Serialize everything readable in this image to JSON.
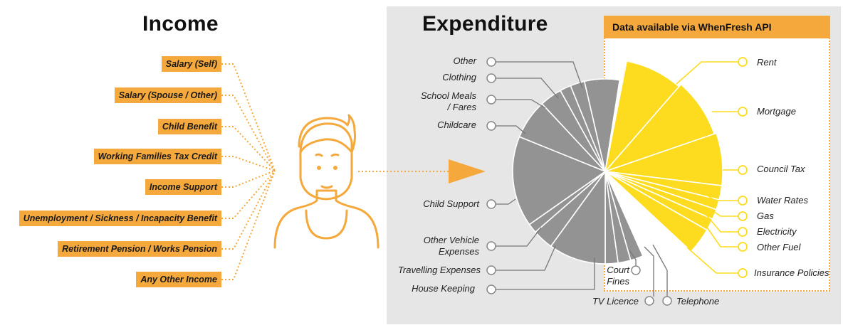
{
  "income": {
    "title": "Income",
    "items": [
      {
        "label": "Salary (Self)"
      },
      {
        "label": "Salary (Spouse / Other)"
      },
      {
        "label": "Child Benefit"
      },
      {
        "label": "Working Families Tax Credit"
      },
      {
        "label": "Income Support"
      },
      {
        "label": "Unemployment / Sickness / Incapacity Benefit"
      },
      {
        "label": "Retirement Pension / Works Pension"
      },
      {
        "label": "Any Other Income"
      }
    ]
  },
  "expenditure": {
    "title": "Expenditure",
    "api_banner": "Data available via WhenFresh API",
    "left_items": [
      {
        "label": "Other"
      },
      {
        "label": "Clothing"
      },
      {
        "label": "School Meals\n/ Fares"
      },
      {
        "label": "Childcare"
      },
      {
        "label": "Child Support"
      },
      {
        "label": "Other Vehicle\nExpenses"
      },
      {
        "label": "Travelling Expenses"
      },
      {
        "label": "House Keeping"
      }
    ],
    "bottom_items": [
      {
        "label": "Court\nFines"
      },
      {
        "label": "TV Licence"
      },
      {
        "label": "Telephone"
      }
    ],
    "api_items": [
      {
        "label": "Rent"
      },
      {
        "label": "Mortgage"
      },
      {
        "label": "Council Tax"
      },
      {
        "label": "Water Rates"
      },
      {
        "label": "Gas"
      },
      {
        "label": "Electricity"
      },
      {
        "label": "Other Fuel"
      },
      {
        "label": "Insurance Policies"
      }
    ]
  },
  "colors": {
    "accent": "#f5a93c",
    "api_slice": "#fddc1f",
    "expense_slice": "#939393",
    "panel": "#e6e6e6"
  },
  "icons": {
    "person": "person-icon",
    "flow_arrow": "arrow-right-icon"
  }
}
